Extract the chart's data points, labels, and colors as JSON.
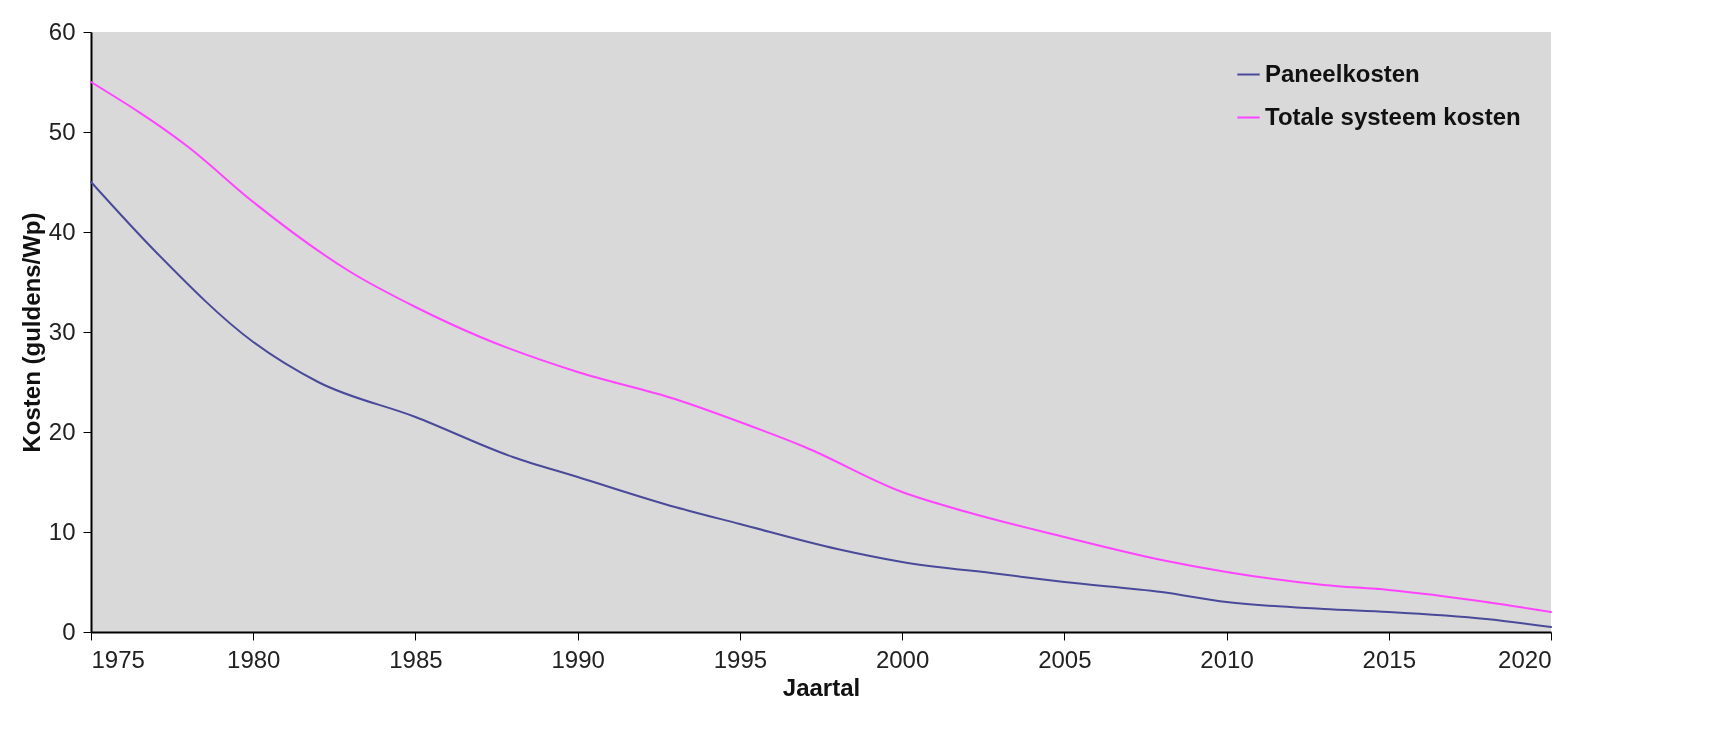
{
  "chart_data": {
    "type": "line",
    "xlabel": "Jaartal",
    "ylabel": "Kosten (guldens/Wp)",
    "xlim": [
      1975,
      2020
    ],
    "xticks": [
      1975,
      1980,
      1985,
      1990,
      1995,
      2000,
      2005,
      2010,
      2015,
      2020
    ],
    "ylim": [
      0,
      60
    ],
    "yticks": [
      0,
      10,
      20,
      30,
      40,
      50,
      60
    ],
    "grid": false,
    "legend": "top right",
    "marker": "none",
    "line_style": "solid",
    "series": [
      {
        "name": "Paneelkosten",
        "color": "#4a4a9a",
        "x": [
          1975,
          1977,
          1980,
          1982,
          1985,
          1988,
          1990,
          1993,
          1995,
          1998,
          2000,
          2003,
          2005,
          2008,
          2010,
          2013,
          2015,
          2018,
          2020
        ],
        "values": [
          45,
          38,
          29,
          25,
          21.5,
          17.5,
          15.5,
          12.5,
          10.8,
          8.3,
          7,
          5.8,
          5,
          4,
          3,
          2.3,
          2,
          1.3,
          0.5
        ]
      },
      {
        "name": "Totale systeem kosten",
        "color": "#ff44ff",
        "x": [
          1975,
          1978,
          1980,
          1983,
          1985,
          1987,
          1990,
          1993,
          1995,
          1997,
          2000,
          2002,
          2005,
          2008,
          2010,
          2013,
          2015,
          2018,
          2020
        ],
        "values": [
          55,
          48.5,
          43,
          36,
          32.5,
          29.5,
          26,
          23.3,
          21,
          18.5,
          14,
          12,
          9.5,
          7.2,
          6,
          4.7,
          4.2,
          3,
          2
        ]
      }
    ]
  }
}
